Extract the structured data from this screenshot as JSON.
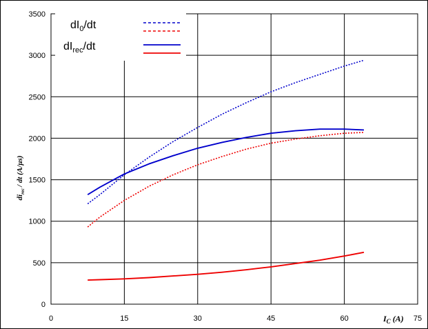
{
  "chart_data": {
    "type": "line",
    "xlabel": {
      "main": "I",
      "sub": "C",
      "unit": "(A)"
    },
    "ylabel": {
      "main": "di",
      "sub": "rec",
      "rest": "/ dt (A/µs)"
    },
    "xlim": [
      0,
      75
    ],
    "ylim": [
      0,
      3500
    ],
    "x_ticks": [
      "0",
      "15",
      "30",
      "45",
      "60",
      "75"
    ],
    "y_ticks": [
      "0",
      "500",
      "1000",
      "1500",
      "2000",
      "2500",
      "3000",
      "3500"
    ],
    "grid": true,
    "legend": {
      "placement": "top-left",
      "entries": [
        {
          "label_main": "dI",
          "label_sub": "0",
          "label_rest": "/dt"
        },
        {
          "label_main": "dI",
          "label_sub": "rec",
          "label_rest": "/dt"
        }
      ]
    },
    "series": [
      {
        "color": "#0000cc",
        "style": "dotted",
        "x": [
          7.5,
          10,
          15,
          20,
          25,
          30,
          35,
          40,
          45,
          50,
          55,
          60,
          64
        ],
        "y": [
          1210,
          1320,
          1560,
          1770,
          1960,
          2130,
          2290,
          2430,
          2560,
          2670,
          2770,
          2870,
          2940
        ]
      },
      {
        "color": "#ee0000",
        "style": "dotted",
        "x": [
          7.5,
          10,
          15,
          20,
          25,
          30,
          35,
          40,
          45,
          50,
          55,
          60,
          64
        ],
        "y": [
          930,
          1050,
          1250,
          1420,
          1560,
          1680,
          1780,
          1870,
          1940,
          1990,
          2030,
          2060,
          2070
        ]
      },
      {
        "color": "#0000cc",
        "style": "solid",
        "x": [
          7.5,
          10,
          15,
          20,
          25,
          30,
          35,
          40,
          45,
          50,
          55,
          60,
          64
        ],
        "y": [
          1320,
          1410,
          1570,
          1690,
          1790,
          1880,
          1950,
          2010,
          2060,
          2090,
          2110,
          2110,
          2100
        ]
      },
      {
        "color": "#ee0000",
        "style": "solid",
        "x": [
          7.5,
          10,
          15,
          20,
          25,
          30,
          35,
          40,
          45,
          50,
          55,
          60,
          64
        ],
        "y": [
          290,
          295,
          305,
          320,
          340,
          360,
          385,
          415,
          450,
          490,
          530,
          580,
          625
        ]
      }
    ]
  }
}
